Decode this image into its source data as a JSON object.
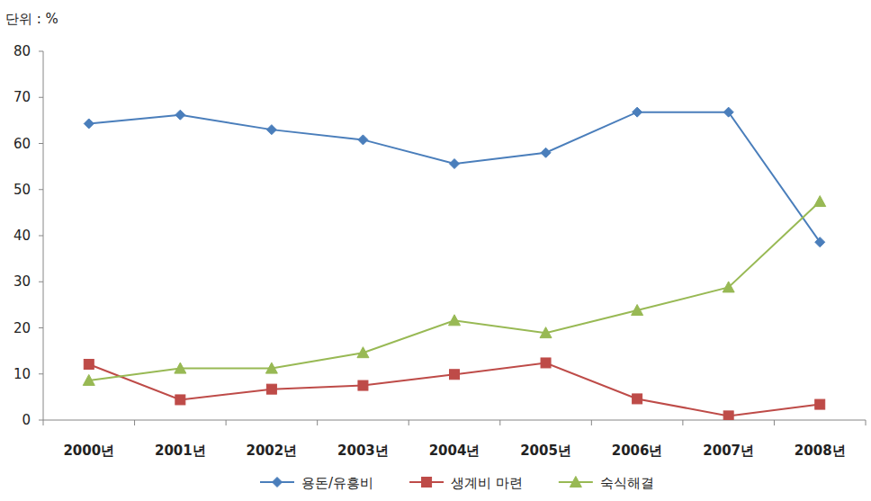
{
  "chart_data": {
    "type": "line",
    "y_label": "단위 : %",
    "categories": [
      "2000년",
      "2001년",
      "2002년",
      "2003년",
      "2004년",
      "2005년",
      "2006년",
      "2007년",
      "2008년"
    ],
    "series": [
      {
        "name": "용돈/유흥비",
        "color": "#4a7ebb",
        "marker": "diamond",
        "values": [
          64.3,
          66.2,
          63.0,
          60.8,
          55.6,
          58.0,
          66.8,
          66.8,
          38.6
        ]
      },
      {
        "name": "생계비 마련",
        "color": "#be4b48",
        "marker": "square",
        "values": [
          12.1,
          4.4,
          6.7,
          7.5,
          9.9,
          12.4,
          4.6,
          0.9,
          3.4
        ]
      },
      {
        "name": "숙식해결",
        "color": "#98b954",
        "marker": "triangle",
        "values": [
          8.6,
          11.2,
          11.2,
          14.6,
          21.6,
          18.9,
          23.8,
          28.8,
          47.4
        ]
      }
    ],
    "ylim": [
      0,
      80
    ],
    "yticks": [
      0,
      10,
      20,
      30,
      40,
      50,
      60,
      70,
      80
    ],
    "grid": false,
    "legend": "bottom"
  }
}
